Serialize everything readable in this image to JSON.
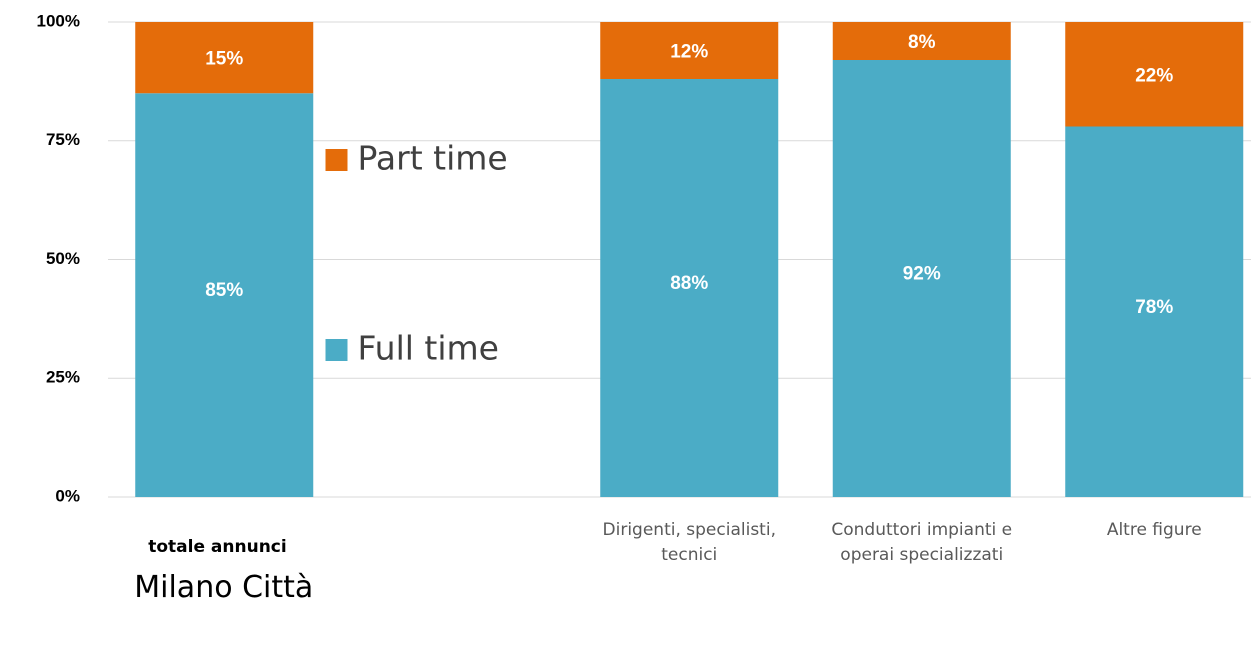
{
  "chart_data": {
    "type": "stacked_bar",
    "categories": [
      "totale annunci",
      null,
      "Dirigenti, specialisti, tecnici",
      "Conduttori impianti e operai specializzati",
      "Altre figure"
    ],
    "annotation": "Milano Città",
    "series": [
      {
        "name": "Full time",
        "color": "#4bacc6",
        "values": [
          85,
          null,
          88,
          92,
          78
        ],
        "value_labels": [
          "85%",
          null,
          "88%",
          "92%",
          "78%"
        ]
      },
      {
        "name": "Part time",
        "color": "#e46c0a",
        "values": [
          15,
          null,
          12,
          8,
          22
        ],
        "value_labels": [
          "15%",
          null,
          "12%",
          "8%",
          "22%"
        ]
      }
    ],
    "ylim": [
      0,
      100
    ],
    "yticks": [
      {
        "value": 0,
        "label": "0%"
      },
      {
        "value": 25,
        "label": "25%"
      },
      {
        "value": 50,
        "label": "50%"
      },
      {
        "value": 75,
        "label": "75%"
      },
      {
        "value": 100,
        "label": "100%"
      }
    ],
    "grid": true,
    "legend_position": "center"
  }
}
